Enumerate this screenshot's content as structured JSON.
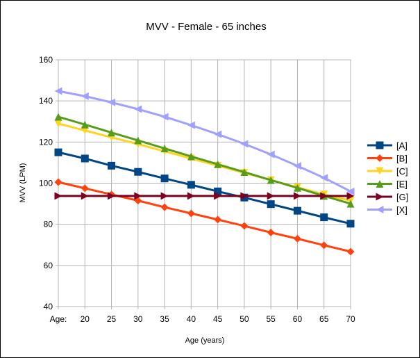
{
  "chart_data": {
    "type": "line",
    "title": "MVV - Female - 65 inches",
    "xlabel": "Age (years)",
    "ylabel": "MVV (LPM)",
    "categories": [
      "Age:",
      "20",
      "25",
      "30",
      "35",
      "40",
      "45",
      "50",
      "55",
      "60",
      "65",
      "70"
    ],
    "ylim": [
      40,
      160
    ],
    "yticks": [
      40,
      60,
      80,
      100,
      120,
      140,
      160
    ],
    "grid": true,
    "legend": "right",
    "series": [
      {
        "name": "[A]",
        "color": "#004586",
        "marker": "square",
        "values": [
          115,
          112,
          108.5,
          105.5,
          102.3,
          99.2,
          96,
          93,
          89.8,
          86.6,
          83.4,
          80.3
        ]
      },
      {
        "name": "[B]",
        "color": "#ff420e",
        "marker": "diamond",
        "values": [
          100.5,
          97.5,
          94.5,
          91.5,
          88.3,
          85.3,
          82.3,
          79.2,
          76,
          73,
          69.8,
          66.7
        ]
      },
      {
        "name": "[C]",
        "color": "#ffd320",
        "marker": "triangle-down",
        "values": [
          129,
          125.6,
          122.3,
          119,
          115.5,
          112,
          108.5,
          105,
          101.5,
          98,
          94.5,
          91.5
        ]
      },
      {
        "name": "[E]",
        "color": "#579d1c",
        "marker": "triangle-up",
        "values": [
          132.3,
          128.5,
          124.6,
          120.8,
          116.9,
          113,
          109.2,
          105.4,
          101.5,
          97.7,
          93.8,
          90
        ]
      },
      {
        "name": "[G]",
        "color": "#7e0021",
        "marker": "triangle-right",
        "values": [
          93.8,
          93.8,
          93.8,
          93.8,
          93.8,
          93.8,
          93.8,
          93.8,
          93.8,
          93.8,
          93.8,
          93.8
        ]
      },
      {
        "name": "[X]",
        "color": "#a0a0ff",
        "marker": "triangle-left",
        "values": [
          144.8,
          142.3,
          139.3,
          136,
          132.3,
          128.2,
          123.8,
          119.1,
          114,
          108.4,
          102.6,
          96
        ]
      }
    ]
  }
}
